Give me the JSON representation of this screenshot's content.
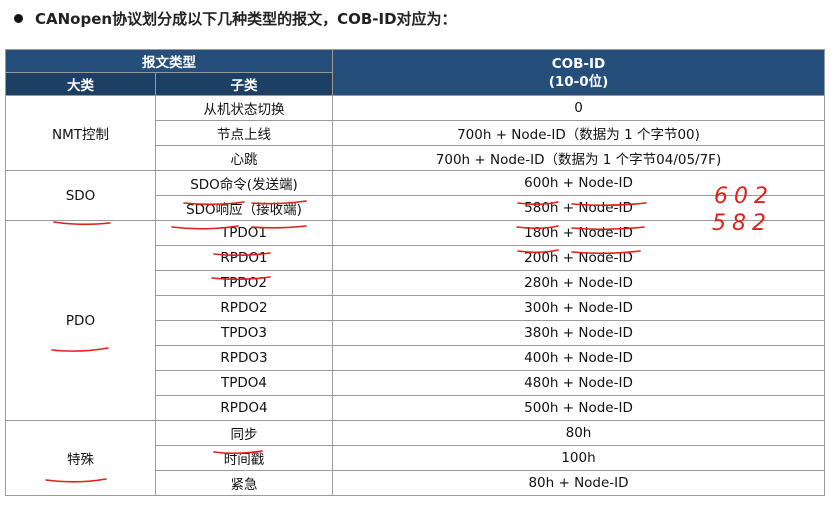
{
  "heading": "CANopen协议划分成以下几种类型的报文，COB-ID对应为：",
  "table": {
    "header_group": "报文类型",
    "header_category": "大类",
    "header_subcategory": "子类",
    "header_cobid_title": "COB-ID",
    "header_cobid_range": "(10-0位)",
    "groups": [
      {
        "name": "NMT控制",
        "rows": [
          {
            "sub": "从机状态切换",
            "cob": "0"
          },
          {
            "sub": "节点上线",
            "cob": "700h + Node-ID（数据为 1 个字节00)"
          },
          {
            "sub": "心跳",
            "cob": "700h + Node-ID（数据为 1 个字节04/05/7F)"
          }
        ]
      },
      {
        "name": "SDO",
        "rows": [
          {
            "sub": "SDO命令(发送端)",
            "cob": "600h + Node-ID"
          },
          {
            "sub": "SDO响应（接收端)",
            "cob": "580h + Node-ID"
          }
        ]
      },
      {
        "name": "PDO",
        "rows": [
          {
            "sub": "TPDO1",
            "cob": "180h + Node-ID"
          },
          {
            "sub": "RPDO1",
            "cob": "200h + Node-ID"
          },
          {
            "sub": "TPDO2",
            "cob": "280h + Node-ID"
          },
          {
            "sub": "RPDO2",
            "cob": "300h + Node-ID"
          },
          {
            "sub": "TPDO3",
            "cob": "380h + Node-ID"
          },
          {
            "sub": "RPDO3",
            "cob": "400h + Node-ID"
          },
          {
            "sub": "TPDO4",
            "cob": "480h + Node-ID"
          },
          {
            "sub": "RPDO4",
            "cob": "500h + Node-ID"
          }
        ]
      },
      {
        "name": "特殊",
        "rows": [
          {
            "sub": "同步",
            "cob": "80h"
          },
          {
            "sub": "时间戳",
            "cob": "100h"
          },
          {
            "sub": "紧急",
            "cob": "80h + Node-ID"
          }
        ]
      }
    ]
  },
  "annotations": {
    "note_sdo_command": "602",
    "note_sdo_response": "582",
    "ink_color": "#e0201a"
  }
}
